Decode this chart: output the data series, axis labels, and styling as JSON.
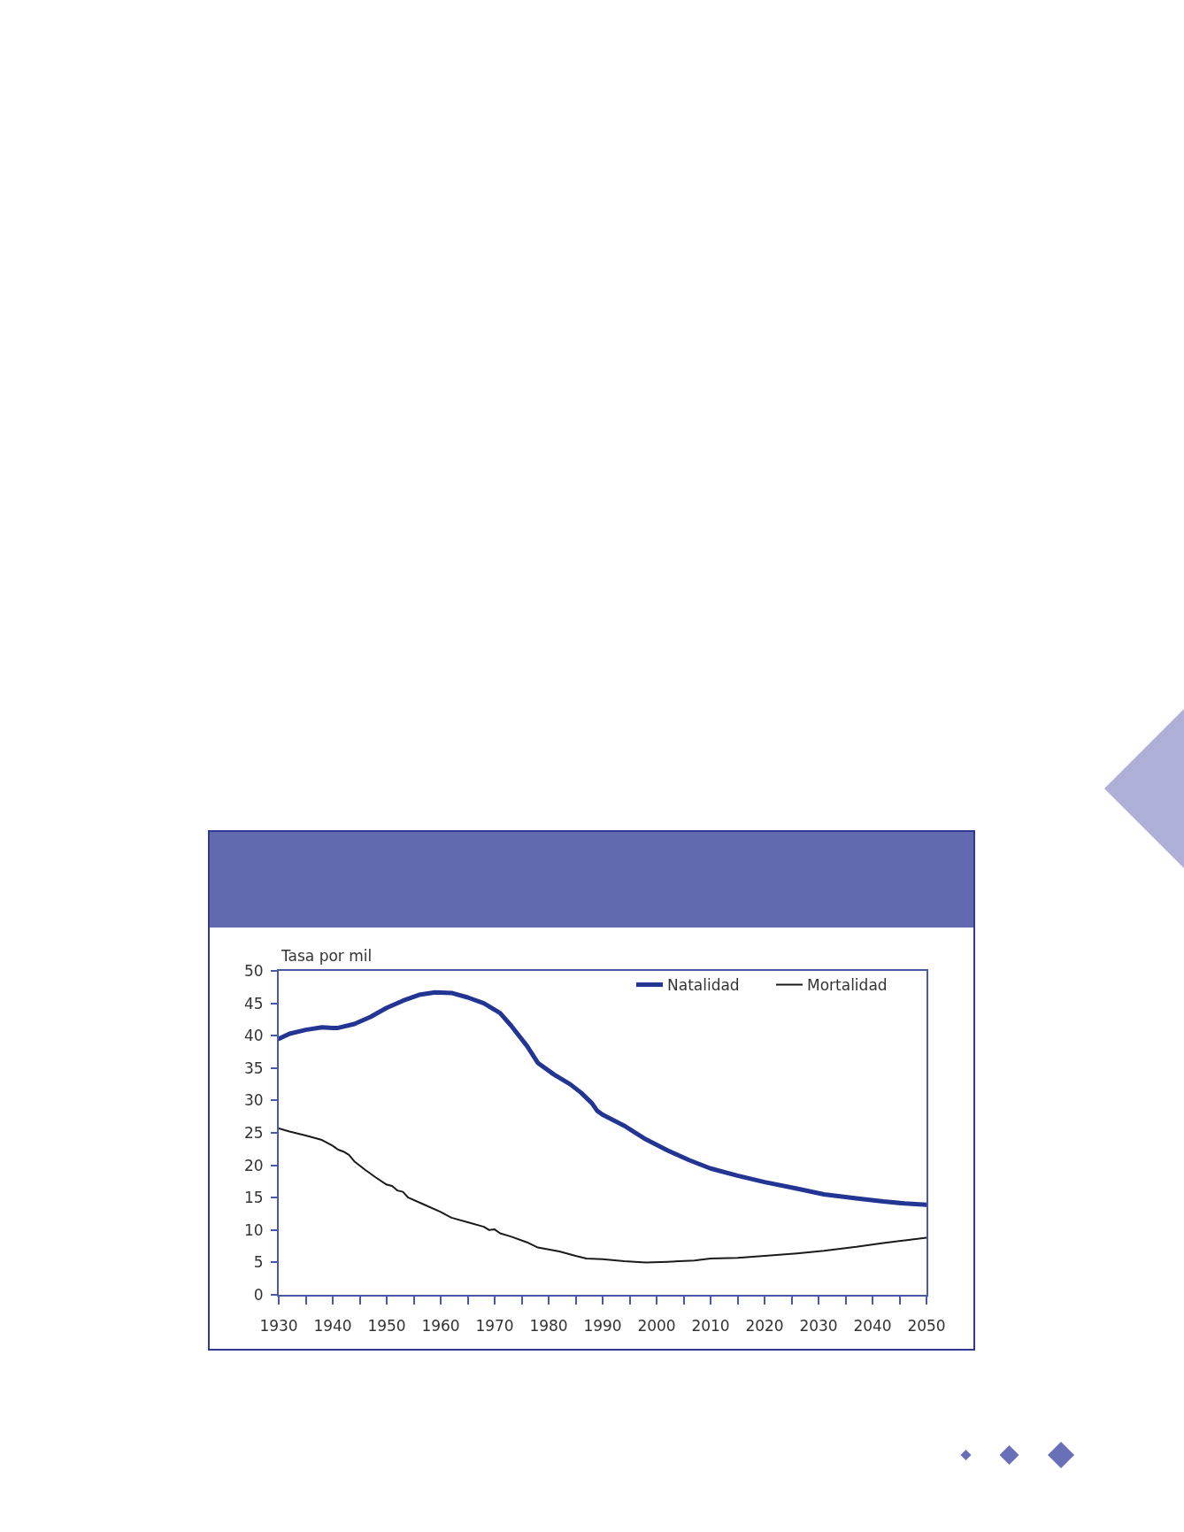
{
  "chart_data": {
    "type": "line",
    "ylabel": "Tasa por mil",
    "xlim": [
      1930,
      2050
    ],
    "ylim": [
      0,
      50
    ],
    "xticks": [
      1930,
      {
        "value": 1935,
        "label": null
      },
      1940,
      {
        "value": 1945,
        "label": null
      },
      1950,
      {
        "value": 1955,
        "label": null
      },
      1960,
      {
        "value": 1965,
        "label": null
      },
      1970,
      {
        "value": 1975,
        "label": null
      },
      1980,
      {
        "value": 1985,
        "label": null
      },
      1990,
      {
        "value": 1995,
        "label": null
      },
      2000,
      {
        "value": 2005,
        "label": null
      },
      2010,
      {
        "value": 2015,
        "label": null
      },
      2020,
      {
        "value": 2025,
        "label": null
      },
      2030,
      {
        "value": 2035,
        "label": null
      },
      2040,
      {
        "value": 2045,
        "label": null
      },
      2050
    ],
    "yticks": [
      0,
      5,
      10,
      15,
      20,
      25,
      30,
      35,
      40,
      45,
      50
    ],
    "legend": "top right",
    "series": [
      {
        "name": "Natalidad",
        "color": "#233592",
        "x": [
          1930,
          1932,
          1935,
          1938,
          1940,
          1941,
          1944,
          1947,
          1950,
          1953,
          1956,
          1959,
          1962,
          1965,
          1968,
          1971,
          1973,
          1976,
          1978,
          1981,
          1984,
          1986,
          1988,
          1989,
          1990,
          1994,
          1998,
          2002,
          2006,
          2010,
          2015,
          2020,
          2026,
          2031,
          2037,
          2042,
          2046,
          2050
        ],
        "values": [
          39.5,
          40.3,
          40.9,
          41.3,
          41.2,
          41.2,
          41.8,
          42.9,
          44.3,
          45.4,
          46.3,
          46.7,
          46.6,
          45.9,
          45.0,
          43.5,
          41.6,
          38.4,
          35.8,
          34.0,
          32.5,
          31.2,
          29.6,
          28.4,
          27.8,
          26.1,
          24.0,
          22.3,
          20.8,
          19.5,
          18.4,
          17.4,
          16.4,
          15.5,
          14.9,
          14.4,
          14.1,
          13.9
        ]
      },
      {
        "name": "Mortalidad",
        "color": "#1a1a1a",
        "x": [
          1930,
          1932,
          1935,
          1938,
          1940,
          1941,
          1942,
          1943,
          1944,
          1946,
          1948,
          1950,
          1951,
          1952,
          1953,
          1954,
          1957,
          1960,
          1962,
          1965,
          1968,
          1969,
          1970,
          1971,
          1973,
          1976,
          1978,
          1982,
          1985,
          1987,
          1990,
          1994,
          1998,
          2002,
          2007,
          2010,
          2015,
          2020,
          2026,
          2031,
          2037,
          2042,
          2046,
          2050
        ],
        "values": [
          25.7,
          25.2,
          24.6,
          23.9,
          23.0,
          22.4,
          22.1,
          21.6,
          20.6,
          19.3,
          18.1,
          17.0,
          16.8,
          16.1,
          15.9,
          15.0,
          13.9,
          12.8,
          11.9,
          11.2,
          10.5,
          10.0,
          10.1,
          9.5,
          9.0,
          8.1,
          7.3,
          6.7,
          6.0,
          5.6,
          5.5,
          5.2,
          5.0,
          5.1,
          5.3,
          5.6,
          5.7,
          6.0,
          6.4,
          6.8,
          7.4,
          8.0,
          8.4,
          8.8
        ]
      }
    ]
  }
}
